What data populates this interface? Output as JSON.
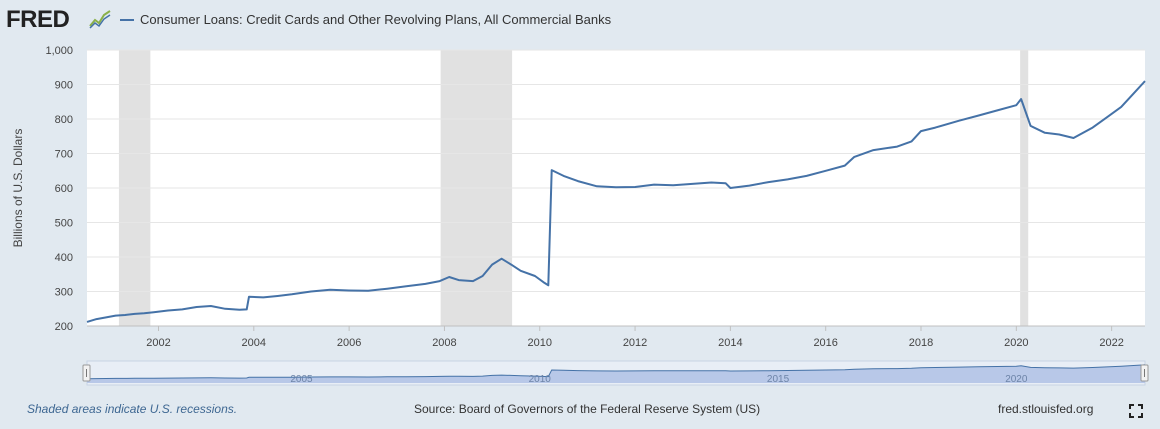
{
  "header": {
    "logo_text": "FRED",
    "logo_icon": "chart-line-icon",
    "series_title": "Consumer Loans: Credit Cards and Other Revolving Plans, All Commercial Banks"
  },
  "footer": {
    "note": "Shaded areas indicate U.S. recessions.",
    "source": "Source: Board of Governors of the Federal Reserve System (US)",
    "site": "fred.stlouisfed.org",
    "fullscreen_icon": "fullscreen-icon"
  },
  "colors": {
    "line": "#4572a7",
    "recession": "#e1e1e1",
    "background": "#e1e9f0",
    "plot_bg": "#ffffff",
    "navigator_fill": "#b8c8e8",
    "navigator_selected": "#8fabd8"
  },
  "chart_data": {
    "type": "line",
    "title": "Consumer Loans: Credit Cards and Other Revolving Plans, All Commercial Banks",
    "xlabel": "",
    "ylabel": "Billions of U.S. Dollars",
    "xlim": [
      2000.5,
      2022.7
    ],
    "ylim": [
      200,
      1000
    ],
    "yticks": [
      200,
      300,
      400,
      500,
      600,
      700,
      800,
      900,
      1000
    ],
    "ytick_labels": [
      "200",
      "300",
      "400",
      "500",
      "600",
      "700",
      "800",
      "900",
      "1,000"
    ],
    "xticks": [
      2002,
      2004,
      2006,
      2008,
      2010,
      2012,
      2014,
      2016,
      2018,
      2020,
      2022
    ],
    "xtick_labels": [
      "2002",
      "2004",
      "2006",
      "2008",
      "2010",
      "2012",
      "2014",
      "2016",
      "2018",
      "2020",
      "2022"
    ],
    "grid": true,
    "recessions": [
      [
        2001.17,
        2001.83
      ],
      [
        2007.92,
        2009.42
      ],
      [
        2020.08,
        2020.25
      ]
    ],
    "navigator_labels": [
      {
        "x": 2005,
        "label": "2005"
      },
      {
        "x": 2010,
        "label": "2010"
      },
      {
        "x": 2015,
        "label": "2015"
      },
      {
        "x": 2020,
        "label": "2020"
      }
    ],
    "series": [
      {
        "name": "Consumer Loans: Credit Cards and Other Revolving Plans, All Commercial Banks",
        "x": [
          2000.5,
          2000.7,
          2000.9,
          2001.1,
          2001.3,
          2001.5,
          2001.7,
          2001.9,
          2002.2,
          2002.5,
          2002.8,
          2003.1,
          2003.4,
          2003.7,
          2003.85,
          2003.9,
          2004.2,
          2004.5,
          2004.8,
          2005.2,
          2005.6,
          2006.0,
          2006.4,
          2006.8,
          2007.2,
          2007.6,
          2007.9,
          2008.1,
          2008.3,
          2008.6,
          2008.8,
          2009.0,
          2009.2,
          2009.4,
          2009.6,
          2009.9,
          2010.1,
          2010.18,
          2010.25,
          2010.5,
          2010.8,
          2011.2,
          2011.6,
          2012.0,
          2012.4,
          2012.8,
          2013.2,
          2013.6,
          2013.9,
          2014.0,
          2014.4,
          2014.8,
          2015.2,
          2015.6,
          2016.0,
          2016.4,
          2016.6,
          2017.0,
          2017.5,
          2017.8,
          2018.0,
          2018.3,
          2018.8,
          2019.2,
          2019.6,
          2020.0,
          2020.1,
          2020.3,
          2020.6,
          2020.9,
          2021.2,
          2021.6,
          2021.9,
          2022.2,
          2022.5,
          2022.7
        ],
        "values": [
          212,
          220,
          225,
          230,
          232,
          235,
          237,
          240,
          245,
          248,
          255,
          258,
          250,
          247,
          248,
          285,
          283,
          287,
          292,
          300,
          305,
          303,
          302,
          308,
          315,
          322,
          330,
          342,
          333,
          330,
          345,
          378,
          395,
          378,
          360,
          345,
          325,
          318,
          652,
          635,
          620,
          605,
          602,
          603,
          610,
          608,
          612,
          616,
          614,
          600,
          607,
          617,
          625,
          635,
          650,
          665,
          690,
          710,
          720,
          735,
          765,
          775,
          795,
          810,
          825,
          840,
          858,
          780,
          760,
          755,
          745,
          775,
          805,
          835,
          880,
          910
        ]
      }
    ]
  }
}
